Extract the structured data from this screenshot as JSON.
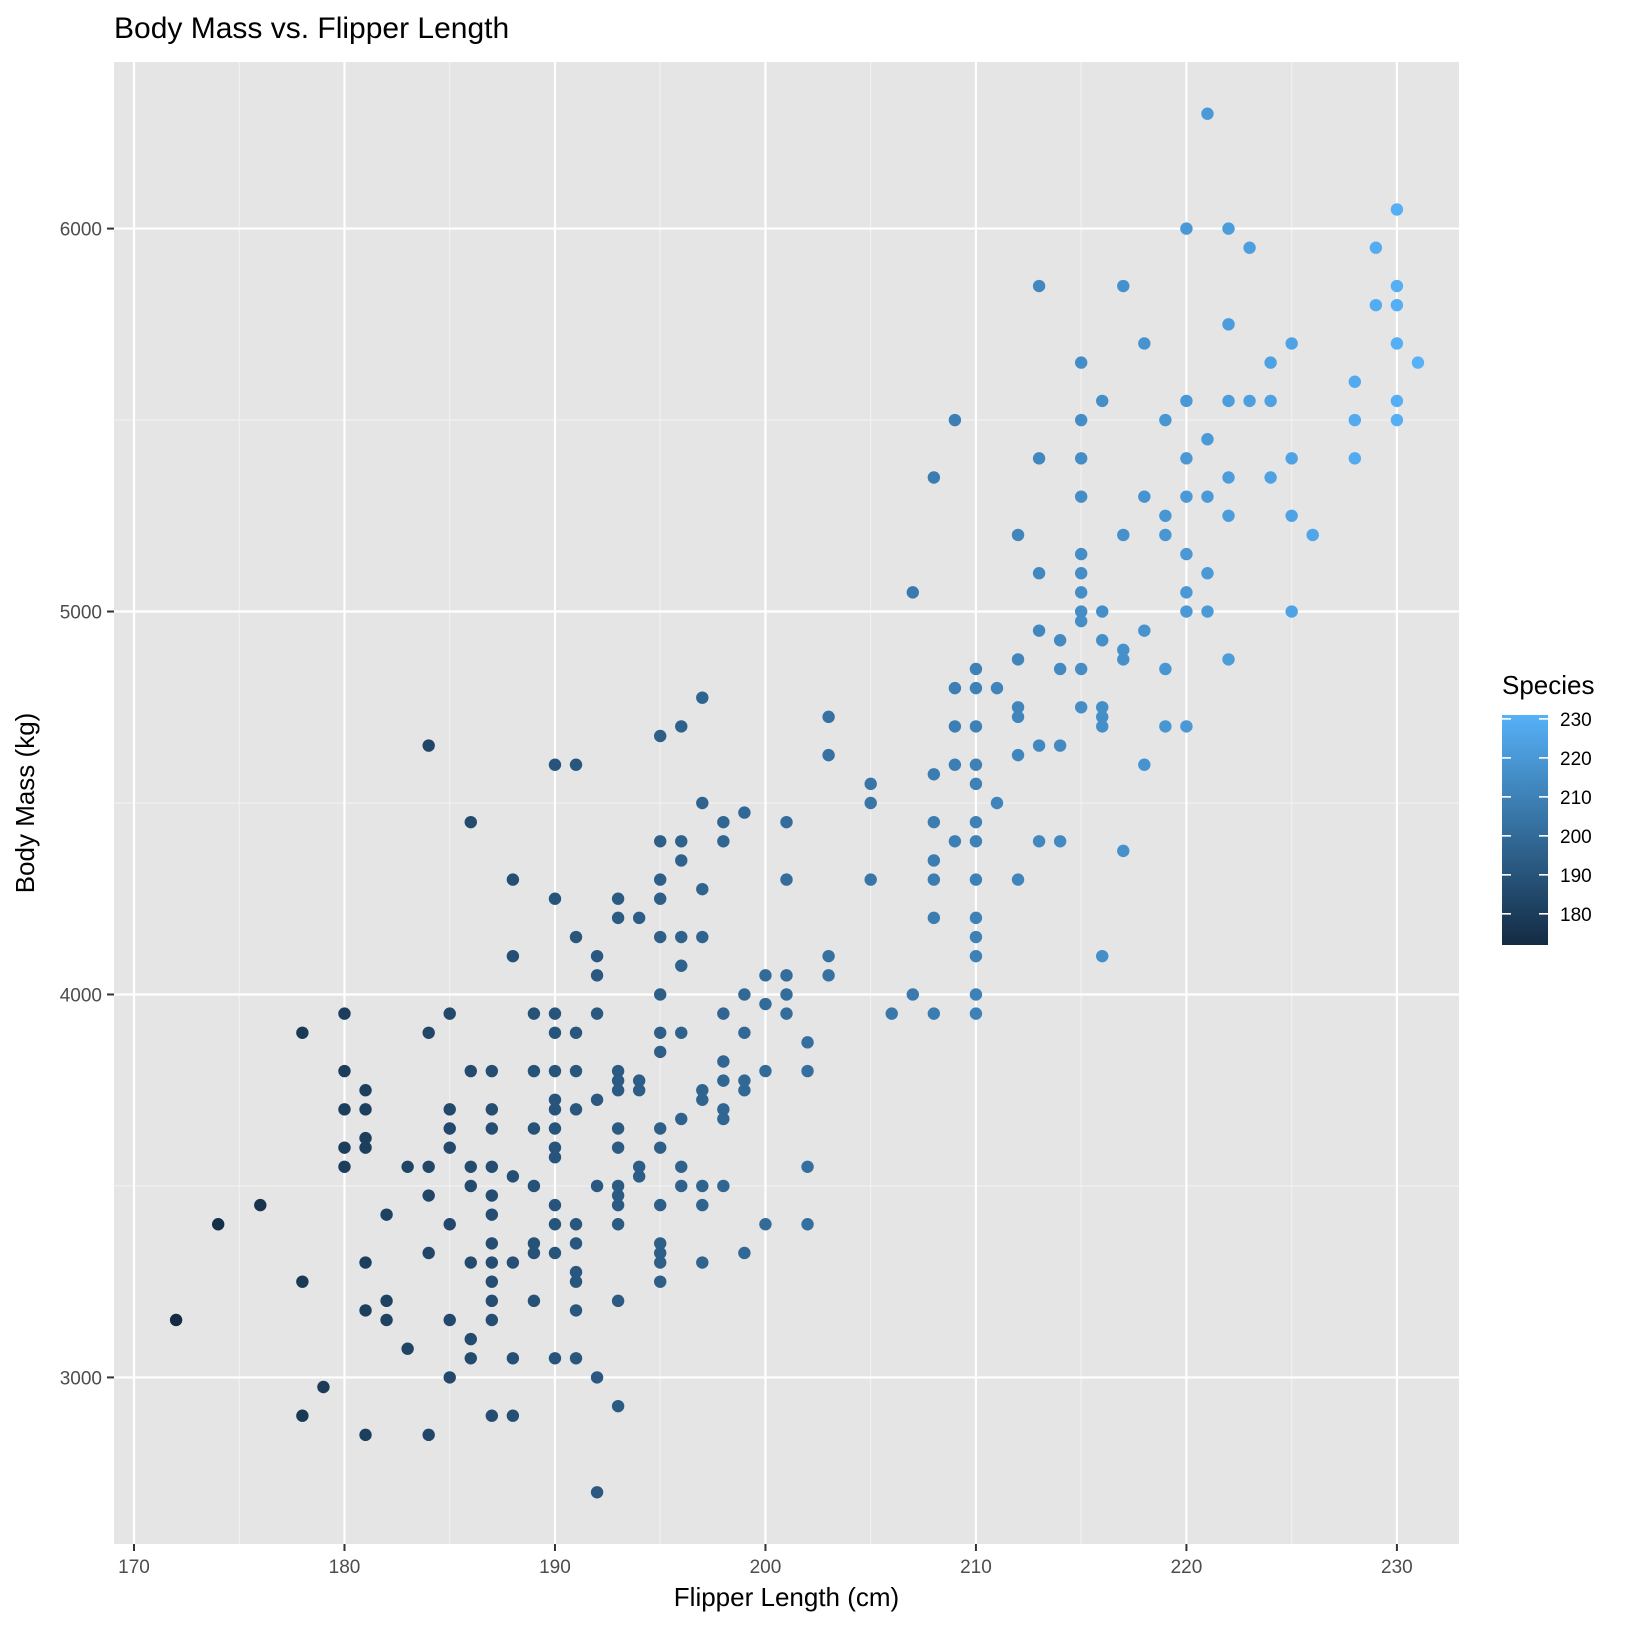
{
  "chart_data": {
    "type": "scatter",
    "title": "Body Mass vs. Flipper Length",
    "xlabel": "Flipper Length (cm)",
    "ylabel": "Body Mass (kg)",
    "xlim": [
      169.05,
      232.95
    ],
    "ylim": [
      2565,
      6435
    ],
    "x_ticks": [
      170,
      180,
      190,
      200,
      210,
      220,
      230
    ],
    "y_ticks": [
      3000,
      4000,
      5000,
      6000
    ],
    "grid": true,
    "legend": {
      "title": "Species",
      "position": "right",
      "ticks": [
        180,
        190,
        200,
        210,
        220,
        230
      ],
      "range": [
        172,
        231
      ],
      "color_low": "#132B43",
      "color_high": "#56B1F7"
    },
    "points": [
      [
        172,
        3150
      ],
      [
        174,
        3400
      ],
      [
        176,
        3450
      ],
      [
        178,
        3900
      ],
      [
        178,
        3250
      ],
      [
        178,
        2900
      ],
      [
        179,
        2975
      ],
      [
        180,
        3950
      ],
      [
        180,
        3800
      ],
      [
        180,
        3700
      ],
      [
        180,
        3600
      ],
      [
        180,
        3550
      ],
      [
        181,
        3750
      ],
      [
        181,
        3700
      ],
      [
        181,
        3625
      ],
      [
        181,
        3600
      ],
      [
        181,
        3300
      ],
      [
        181,
        3175
      ],
      [
        181,
        2850
      ],
      [
        182,
        3425
      ],
      [
        182,
        3200
      ],
      [
        182,
        3150
      ],
      [
        183,
        3550
      ],
      [
        183,
        3075
      ],
      [
        184,
        4650
      ],
      [
        184,
        3900
      ],
      [
        184,
        3550
      ],
      [
        184,
        3475
      ],
      [
        184,
        3325
      ],
      [
        184,
        2850
      ],
      [
        185,
        3950
      ],
      [
        185,
        3700
      ],
      [
        185,
        3650
      ],
      [
        185,
        3600
      ],
      [
        185,
        3400
      ],
      [
        185,
        3150
      ],
      [
        185,
        3000
      ],
      [
        186,
        4450
      ],
      [
        186,
        3800
      ],
      [
        186,
        3550
      ],
      [
        186,
        3500
      ],
      [
        186,
        3300
      ],
      [
        186,
        3100
      ],
      [
        186,
        3050
      ],
      [
        187,
        3800
      ],
      [
        187,
        3700
      ],
      [
        187,
        3650
      ],
      [
        187,
        3550
      ],
      [
        187,
        3475
      ],
      [
        187,
        3425
      ],
      [
        187,
        3350
      ],
      [
        187,
        3300
      ],
      [
        187,
        3250
      ],
      [
        187,
        3200
      ],
      [
        187,
        3150
      ],
      [
        187,
        2900
      ],
      [
        188,
        4300
      ],
      [
        188,
        4100
      ],
      [
        188,
        3525
      ],
      [
        188,
        3300
      ],
      [
        188,
        3050
      ],
      [
        188,
        2900
      ],
      [
        189,
        3950
      ],
      [
        189,
        3800
      ],
      [
        189,
        3650
      ],
      [
        189,
        3500
      ],
      [
        189,
        3350
      ],
      [
        189,
        3325
      ],
      [
        189,
        3200
      ],
      [
        190,
        4600
      ],
      [
        190,
        4250
      ],
      [
        190,
        3950
      ],
      [
        190,
        3900
      ],
      [
        190,
        3800
      ],
      [
        190,
        3725
      ],
      [
        190,
        3700
      ],
      [
        190,
        3650
      ],
      [
        190,
        3600
      ],
      [
        190,
        3575
      ],
      [
        190,
        3450
      ],
      [
        190,
        3400
      ],
      [
        190,
        3325
      ],
      [
        190,
        3050
      ],
      [
        191,
        4600
      ],
      [
        191,
        4150
      ],
      [
        191,
        3900
      ],
      [
        191,
        3800
      ],
      [
        191,
        3700
      ],
      [
        191,
        3400
      ],
      [
        191,
        3350
      ],
      [
        191,
        3275
      ],
      [
        191,
        3250
      ],
      [
        191,
        3175
      ],
      [
        191,
        3050
      ],
      [
        192,
        4100
      ],
      [
        192,
        4050
      ],
      [
        192,
        3950
      ],
      [
        192,
        3725
      ],
      [
        192,
        3500
      ],
      [
        192,
        3000
      ],
      [
        192,
        2700
      ],
      [
        193,
        4250
      ],
      [
        193,
        4200
      ],
      [
        193,
        3800
      ],
      [
        193,
        3775
      ],
      [
        193,
        3750
      ],
      [
        193,
        3650
      ],
      [
        193,
        3600
      ],
      [
        193,
        3500
      ],
      [
        193,
        3475
      ],
      [
        193,
        3450
      ],
      [
        193,
        3400
      ],
      [
        193,
        3200
      ],
      [
        193,
        2925
      ],
      [
        194,
        4200
      ],
      [
        194,
        3775
      ],
      [
        194,
        3750
      ],
      [
        194,
        3550
      ],
      [
        194,
        3525
      ],
      [
        195,
        4675
      ],
      [
        195,
        4400
      ],
      [
        195,
        4300
      ],
      [
        195,
        4250
      ],
      [
        195,
        4150
      ],
      [
        195,
        4000
      ],
      [
        195,
        3900
      ],
      [
        195,
        3850
      ],
      [
        195,
        3650
      ],
      [
        195,
        3600
      ],
      [
        195,
        3450
      ],
      [
        195,
        3350
      ],
      [
        195,
        3325
      ],
      [
        195,
        3300
      ],
      [
        195,
        3250
      ],
      [
        196,
        4700
      ],
      [
        196,
        4400
      ],
      [
        196,
        4350
      ],
      [
        196,
        4150
      ],
      [
        196,
        4075
      ],
      [
        196,
        3900
      ],
      [
        196,
        3675
      ],
      [
        196,
        3550
      ],
      [
        196,
        3500
      ],
      [
        197,
        4775
      ],
      [
        197,
        4500
      ],
      [
        197,
        4275
      ],
      [
        197,
        4150
      ],
      [
        197,
        3750
      ],
      [
        197,
        3725
      ],
      [
        197,
        3500
      ],
      [
        197,
        3450
      ],
      [
        197,
        3300
      ],
      [
        198,
        4450
      ],
      [
        198,
        4400
      ],
      [
        198,
        3950
      ],
      [
        198,
        3825
      ],
      [
        198,
        3775
      ],
      [
        198,
        3700
      ],
      [
        198,
        3675
      ],
      [
        198,
        3500
      ],
      [
        199,
        4475
      ],
      [
        199,
        4000
      ],
      [
        199,
        3900
      ],
      [
        199,
        3775
      ],
      [
        199,
        3750
      ],
      [
        199,
        3325
      ],
      [
        200,
        4050
      ],
      [
        200,
        3975
      ],
      [
        200,
        3800
      ],
      [
        200,
        3400
      ],
      [
        201,
        4450
      ],
      [
        201,
        4300
      ],
      [
        201,
        4050
      ],
      [
        201,
        4000
      ],
      [
        201,
        3950
      ],
      [
        202,
        3875
      ],
      [
        202,
        3800
      ],
      [
        202,
        3550
      ],
      [
        202,
        3400
      ],
      [
        203,
        4725
      ],
      [
        203,
        4625
      ],
      [
        203,
        4100
      ],
      [
        203,
        4050
      ],
      [
        205,
        4550
      ],
      [
        205,
        4500
      ],
      [
        205,
        4300
      ],
      [
        206,
        3950
      ],
      [
        207,
        5050
      ],
      [
        207,
        4000
      ],
      [
        208,
        5350
      ],
      [
        208,
        4575
      ],
      [
        208,
        4450
      ],
      [
        208,
        4350
      ],
      [
        208,
        4300
      ],
      [
        208,
        4200
      ],
      [
        208,
        3950
      ],
      [
        209,
        5500
      ],
      [
        209,
        4800
      ],
      [
        209,
        4700
      ],
      [
        209,
        4600
      ],
      [
        209,
        4400
      ],
      [
        210,
        4850
      ],
      [
        210,
        4800
      ],
      [
        210,
        4700
      ],
      [
        210,
        4600
      ],
      [
        210,
        4550
      ],
      [
        210,
        4450
      ],
      [
        210,
        4400
      ],
      [
        210,
        4300
      ],
      [
        210,
        4200
      ],
      [
        210,
        4150
      ],
      [
        210,
        4100
      ],
      [
        210,
        4000
      ],
      [
        210,
        3950
      ],
      [
        211,
        4800
      ],
      [
        211,
        4500
      ],
      [
        212,
        5200
      ],
      [
        212,
        4875
      ],
      [
        212,
        4750
      ],
      [
        212,
        4725
      ],
      [
        212,
        4625
      ],
      [
        212,
        4300
      ],
      [
        213,
        5850
      ],
      [
        213,
        5400
      ],
      [
        213,
        5100
      ],
      [
        213,
        4950
      ],
      [
        213,
        4650
      ],
      [
        213,
        4400
      ],
      [
        214,
        4925
      ],
      [
        214,
        4850
      ],
      [
        214,
        4650
      ],
      [
        214,
        4400
      ],
      [
        215,
        5650
      ],
      [
        215,
        5500
      ],
      [
        215,
        5400
      ],
      [
        215,
        5300
      ],
      [
        215,
        5150
      ],
      [
        215,
        5100
      ],
      [
        215,
        5050
      ],
      [
        215,
        5000
      ],
      [
        215,
        4975
      ],
      [
        215,
        4850
      ],
      [
        215,
        4750
      ],
      [
        216,
        5550
      ],
      [
        216,
        5000
      ],
      [
        216,
        4925
      ],
      [
        216,
        4750
      ],
      [
        216,
        4725
      ],
      [
        216,
        4700
      ],
      [
        216,
        4100
      ],
      [
        217,
        5850
      ],
      [
        217,
        5200
      ],
      [
        217,
        4900
      ],
      [
        217,
        4875
      ],
      [
        217,
        4375
      ],
      [
        218,
        5700
      ],
      [
        218,
        5300
      ],
      [
        218,
        4950
      ],
      [
        218,
        4600
      ],
      [
        219,
        5500
      ],
      [
        219,
        5250
      ],
      [
        219,
        5200
      ],
      [
        219,
        4850
      ],
      [
        219,
        4700
      ],
      [
        220,
        6000
      ],
      [
        220,
        5550
      ],
      [
        220,
        5400
      ],
      [
        220,
        5300
      ],
      [
        220,
        5150
      ],
      [
        220,
        5050
      ],
      [
        220,
        5000
      ],
      [
        220,
        4700
      ],
      [
        221,
        6300
      ],
      [
        221,
        5450
      ],
      [
        221,
        5300
      ],
      [
        221,
        5100
      ],
      [
        221,
        5000
      ],
      [
        222,
        6000
      ],
      [
        222,
        5750
      ],
      [
        222,
        5550
      ],
      [
        222,
        5350
      ],
      [
        222,
        5250
      ],
      [
        222,
        4875
      ],
      [
        223,
        5950
      ],
      [
        223,
        5550
      ],
      [
        224,
        5650
      ],
      [
        224,
        5550
      ],
      [
        224,
        5350
      ],
      [
        225,
        5700
      ],
      [
        225,
        5400
      ],
      [
        225,
        5250
      ],
      [
        225,
        5000
      ],
      [
        226,
        5200
      ],
      [
        228,
        5600
      ],
      [
        228,
        5500
      ],
      [
        228,
        5400
      ],
      [
        229,
        5950
      ],
      [
        229,
        5800
      ],
      [
        230,
        6050
      ],
      [
        230,
        5850
      ],
      [
        230,
        5800
      ],
      [
        230,
        5700
      ],
      [
        230,
        5550
      ],
      [
        230,
        5500
      ],
      [
        231,
        5650
      ]
    ]
  }
}
